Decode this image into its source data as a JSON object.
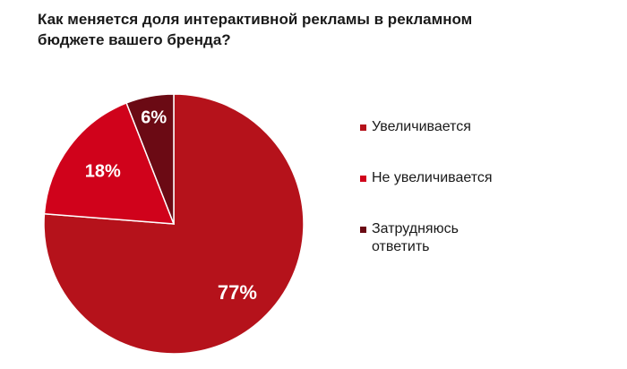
{
  "title": "Как меняется доля интерактивной рекламы в рекламном бюджете вашего бренда?",
  "chart_data": {
    "type": "pie",
    "title": "Как меняется доля интерактивной рекламы в рекламном бюджете вашего бренда?",
    "slices": [
      {
        "label": "Увеличивается",
        "value": 77,
        "value_label": "77%",
        "color": "#b5121b"
      },
      {
        "label": "Не увеличивается",
        "value": 18,
        "value_label": "18%",
        "color": "#d0021b"
      },
      {
        "label": "Затрудняюсь\nответить",
        "value": 6,
        "value_label": "6%",
        "color": "#6b0a14"
      }
    ],
    "start": "12 o'clock",
    "direction": "clockwise",
    "legend_position": "right"
  }
}
